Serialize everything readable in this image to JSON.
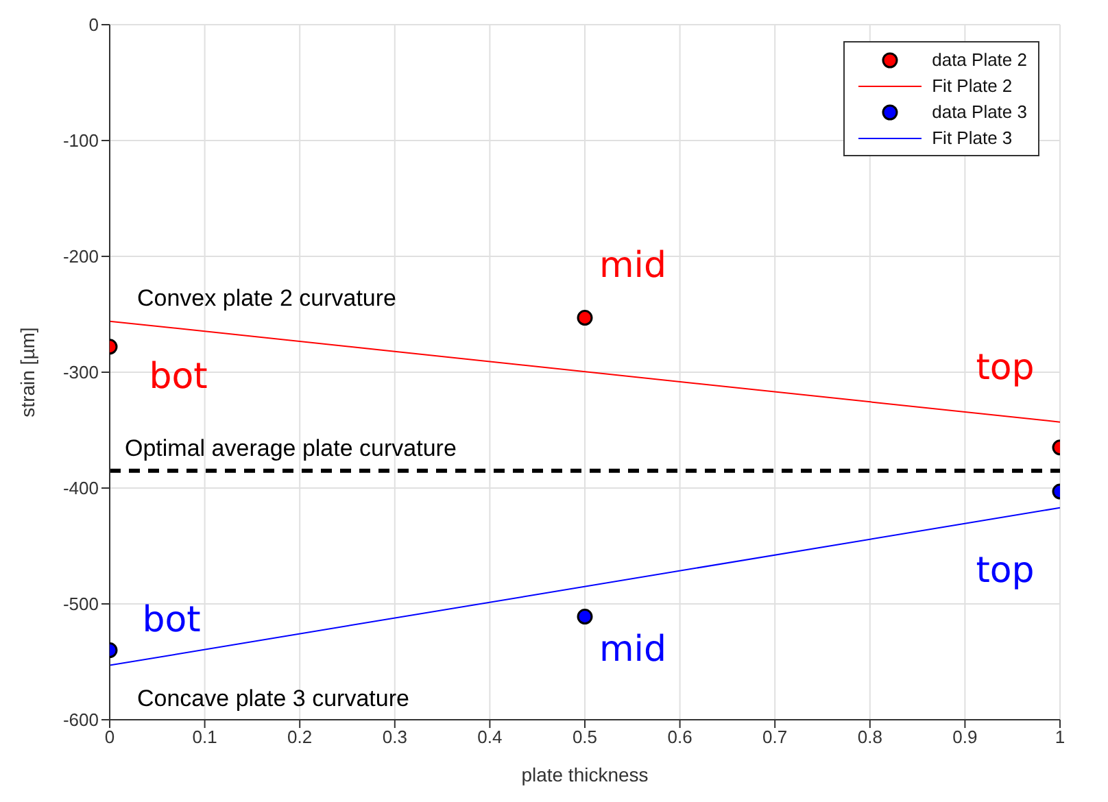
{
  "chart_data": {
    "type": "scatter",
    "xlabel": "plate thickness",
    "ylabel": "strain [µm]",
    "xlim": [
      0,
      1
    ],
    "xticks": [
      0,
      0.1,
      0.2,
      0.3,
      0.4,
      0.5,
      0.6,
      0.7,
      0.8,
      0.9,
      1
    ],
    "ylim": [
      -600,
      0
    ],
    "yticks": [
      -600,
      -500,
      -400,
      -300,
      -200,
      -100,
      0
    ],
    "grid": true,
    "legend": "top right",
    "series": [
      {
        "name": "data Plate 2",
        "marker": "circle",
        "color": "#ff0000",
        "x": [
          0,
          0.5,
          1
        ],
        "values": [
          -278,
          -253,
          -365
        ],
        "value_labels": [
          "bot",
          "mid",
          "top"
        ]
      },
      {
        "name": "Fit Plate 2",
        "type": "line",
        "marker": "none",
        "color": "#ff0000",
        "x": [
          0,
          1
        ],
        "values": [
          -256,
          -343
        ],
        "line_style": "solid"
      },
      {
        "name": "data Plate 3",
        "marker": "circle",
        "color": "#0000ff",
        "x": [
          0,
          0.5,
          1
        ],
        "values": [
          -540,
          -511,
          -403
        ],
        "value_labels": [
          "bot",
          "mid",
          "top"
        ]
      },
      {
        "name": "Fit Plate 3",
        "type": "line",
        "marker": "none",
        "color": "#0000ff",
        "x": [
          0,
          1
        ],
        "values": [
          -553,
          -417
        ],
        "line_style": "solid"
      }
    ],
    "ref_lines": [
      {
        "axis": "y",
        "value": -385,
        "label": "Optimal average plate curvature",
        "color": "#000000",
        "line_style": "dashed"
      }
    ],
    "annotations": [
      "Convex plate 2 curvature",
      "Concave plate 3 curvature"
    ]
  }
}
